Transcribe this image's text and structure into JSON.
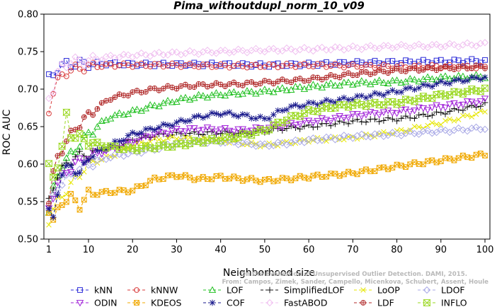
{
  "chart_data": {
    "type": "line",
    "title": "Pima_withoutdupl_norm_10_v09",
    "xlabel": "Neighborhood size",
    "ylabel": "ROC AUC",
    "xlim": [
      1,
      100
    ],
    "ylim": [
      0.5,
      0.8
    ],
    "xticks": [
      1,
      10,
      20,
      30,
      40,
      50,
      60,
      70,
      80,
      90,
      100
    ],
    "yticks": [
      "0.50",
      "0.55",
      "0.60",
      "0.65",
      "0.70",
      "0.75",
      "0.80"
    ],
    "grid": false,
    "legend_position": "bottom",
    "credit": [
      "From: Campos, Zimek, Sander, Campello, Micenkova, Schubert, Assent, Houle",
      "On the Evaluation of Unsupervised Outlier Detection. DAMI, 2015."
    ],
    "series": [
      {
        "name": "kNN",
        "color": "#2b2bd8",
        "marker": "square",
        "points": [
          [
            1,
            0.714
          ],
          [
            2,
            0.72
          ],
          [
            3,
            0.727
          ],
          [
            4,
            0.73
          ],
          [
            5,
            0.733
          ],
          [
            8,
            0.734
          ],
          [
            15,
            0.734
          ],
          [
            20,
            0.733
          ],
          [
            30,
            0.733
          ],
          [
            40,
            0.733
          ],
          [
            50,
            0.732
          ],
          [
            60,
            0.733
          ],
          [
            70,
            0.735
          ],
          [
            80,
            0.736
          ],
          [
            90,
            0.737
          ],
          [
            100,
            0.738
          ]
        ]
      },
      {
        "name": "kNNW",
        "color": "#d83a3a",
        "marker": "circle",
        "points": [
          [
            1,
            0.672
          ],
          [
            2,
            0.697
          ],
          [
            3,
            0.71
          ],
          [
            4,
            0.718
          ],
          [
            5,
            0.723
          ],
          [
            7,
            0.727
          ],
          [
            10,
            0.73
          ],
          [
            15,
            0.732
          ],
          [
            20,
            0.732
          ],
          [
            30,
            0.732
          ],
          [
            40,
            0.731
          ],
          [
            50,
            0.731
          ],
          [
            60,
            0.732
          ],
          [
            70,
            0.731
          ],
          [
            80,
            0.73
          ],
          [
            90,
            0.73
          ],
          [
            100,
            0.729
          ]
        ]
      },
      {
        "name": "LOF",
        "color": "#22c022",
        "marker": "triangle",
        "points": [
          [
            1,
            0.535
          ],
          [
            2,
            0.565
          ],
          [
            3,
            0.585
          ],
          [
            4,
            0.6
          ],
          [
            5,
            0.605
          ],
          [
            7,
            0.62
          ],
          [
            10,
            0.64
          ],
          [
            13,
            0.655
          ],
          [
            15,
            0.663
          ],
          [
            20,
            0.67
          ],
          [
            25,
            0.678
          ],
          [
            30,
            0.685
          ],
          [
            35,
            0.69
          ],
          [
            40,
            0.693
          ],
          [
            50,
            0.697
          ],
          [
            60,
            0.703
          ],
          [
            70,
            0.708
          ],
          [
            80,
            0.71
          ],
          [
            90,
            0.715
          ],
          [
            100,
            0.717
          ]
        ]
      },
      {
        "name": "SimplifiedLOF",
        "color": "#111111",
        "marker": "plus",
        "points": [
          [
            1,
            0.55
          ],
          [
            2,
            0.57
          ],
          [
            3,
            0.585
          ],
          [
            5,
            0.6
          ],
          [
            7,
            0.61
          ],
          [
            10,
            0.613
          ],
          [
            13,
            0.62
          ],
          [
            17,
            0.625
          ],
          [
            20,
            0.632
          ],
          [
            25,
            0.638
          ],
          [
            30,
            0.64
          ],
          [
            35,
            0.641
          ],
          [
            40,
            0.642
          ],
          [
            45,
            0.641
          ],
          [
            50,
            0.644
          ],
          [
            55,
            0.648
          ],
          [
            60,
            0.65
          ],
          [
            70,
            0.657
          ],
          [
            80,
            0.66
          ],
          [
            90,
            0.668
          ],
          [
            100,
            0.68
          ]
        ]
      },
      {
        "name": "LoOP",
        "color": "#e6e600",
        "marker": "x",
        "points": [
          [
            1,
            0.525
          ],
          [
            2,
            0.54
          ],
          [
            3,
            0.55
          ],
          [
            5,
            0.565
          ],
          [
            7,
            0.58
          ],
          [
            10,
            0.6
          ],
          [
            15,
            0.61
          ],
          [
            20,
            0.625
          ],
          [
            25,
            0.632
          ],
          [
            30,
            0.635
          ],
          [
            35,
            0.633
          ],
          [
            40,
            0.632
          ],
          [
            45,
            0.628
          ],
          [
            50,
            0.625
          ],
          [
            55,
            0.628
          ],
          [
            60,
            0.632
          ],
          [
            70,
            0.635
          ],
          [
            80,
            0.643
          ],
          [
            90,
            0.655
          ],
          [
            100,
            0.67
          ]
        ]
      },
      {
        "name": "LDOF",
        "color": "#a9a9e6",
        "marker": "diamond",
        "points": [
          [
            1,
            0.535
          ],
          [
            2,
            0.555
          ],
          [
            3,
            0.57
          ],
          [
            5,
            0.58
          ],
          [
            7,
            0.59
          ],
          [
            10,
            0.6
          ],
          [
            15,
            0.61
          ],
          [
            20,
            0.615
          ],
          [
            25,
            0.62
          ],
          [
            30,
            0.628
          ],
          [
            35,
            0.63
          ],
          [
            40,
            0.63
          ],
          [
            45,
            0.628
          ],
          [
            50,
            0.625
          ],
          [
            55,
            0.628
          ],
          [
            60,
            0.632
          ],
          [
            70,
            0.637
          ],
          [
            80,
            0.64
          ],
          [
            90,
            0.644
          ],
          [
            100,
            0.648
          ]
        ]
      },
      {
        "name": "ODIN",
        "color": "#a020d8",
        "marker": "triangle-down",
        "points": [
          [
            1,
            0.54
          ],
          [
            2,
            0.56
          ],
          [
            3,
            0.575
          ],
          [
            5,
            0.59
          ],
          [
            7,
            0.6
          ],
          [
            10,
            0.61
          ],
          [
            15,
            0.62
          ],
          [
            20,
            0.63
          ],
          [
            25,
            0.64
          ],
          [
            30,
            0.645
          ],
          [
            35,
            0.647
          ],
          [
            40,
            0.646
          ],
          [
            45,
            0.645
          ],
          [
            50,
            0.648
          ],
          [
            55,
            0.652
          ],
          [
            60,
            0.657
          ],
          [
            65,
            0.66
          ],
          [
            70,
            0.665
          ],
          [
            75,
            0.668
          ],
          [
            80,
            0.67
          ],
          [
            90,
            0.677
          ],
          [
            100,
            0.685
          ]
        ]
      },
      {
        "name": "KDEOS",
        "color": "#f0a800",
        "marker": "square-x",
        "points": [
          [
            1,
            0.54
          ],
          [
            2,
            0.522
          ],
          [
            3,
            0.538
          ],
          [
            4,
            0.55
          ],
          [
            6,
            0.555
          ],
          [
            8,
            0.545
          ],
          [
            10,
            0.56
          ],
          [
            15,
            0.563
          ],
          [
            20,
            0.565
          ],
          [
            25,
            0.58
          ],
          [
            30,
            0.585
          ],
          [
            35,
            0.58
          ],
          [
            40,
            0.583
          ],
          [
            45,
            0.58
          ],
          [
            50,
            0.578
          ],
          [
            55,
            0.58
          ],
          [
            60,
            0.583
          ],
          [
            70,
            0.588
          ],
          [
            80,
            0.597
          ],
          [
            90,
            0.605
          ],
          [
            100,
            0.613
          ]
        ]
      },
      {
        "name": "COF",
        "color": "#1a1a8c",
        "marker": "asterisk",
        "points": [
          [
            1,
            0.535
          ],
          [
            2,
            0.528
          ],
          [
            3,
            0.565
          ],
          [
            4,
            0.585
          ],
          [
            6,
            0.6
          ],
          [
            8,
            0.585
          ],
          [
            10,
            0.61
          ],
          [
            15,
            0.625
          ],
          [
            20,
            0.64
          ],
          [
            25,
            0.648
          ],
          [
            30,
            0.655
          ],
          [
            35,
            0.663
          ],
          [
            40,
            0.668
          ],
          [
            45,
            0.665
          ],
          [
            50,
            0.66
          ],
          [
            55,
            0.675
          ],
          [
            60,
            0.68
          ],
          [
            70,
            0.688
          ],
          [
            80,
            0.697
          ],
          [
            90,
            0.708
          ],
          [
            95,
            0.712
          ],
          [
            100,
            0.716
          ]
        ]
      },
      {
        "name": "FastABOD",
        "color": "#f0c0f0",
        "marker": "diamond",
        "points": [
          [
            1,
            0.69
          ],
          [
            2,
            0.7
          ],
          [
            3,
            0.72
          ],
          [
            4,
            0.73
          ],
          [
            6,
            0.737
          ],
          [
            10,
            0.738
          ],
          [
            15,
            0.743
          ],
          [
            20,
            0.745
          ],
          [
            30,
            0.748
          ],
          [
            40,
            0.75
          ],
          [
            50,
            0.752
          ],
          [
            60,
            0.753
          ],
          [
            70,
            0.755
          ],
          [
            80,
            0.757
          ],
          [
            90,
            0.758
          ],
          [
            100,
            0.76
          ]
        ]
      },
      {
        "name": "LDF",
        "color": "#b02828",
        "marker": "circle-plus",
        "points": [
          [
            1,
            0.55
          ],
          [
            2,
            0.585
          ],
          [
            3,
            0.61
          ],
          [
            5,
            0.63
          ],
          [
            7,
            0.648
          ],
          [
            10,
            0.665
          ],
          [
            12,
            0.675
          ],
          [
            15,
            0.688
          ],
          [
            20,
            0.695
          ],
          [
            25,
            0.7
          ],
          [
            30,
            0.703
          ],
          [
            35,
            0.705
          ],
          [
            40,
            0.706
          ],
          [
            45,
            0.707
          ],
          [
            50,
            0.709
          ],
          [
            60,
            0.713
          ],
          [
            70,
            0.72
          ],
          [
            80,
            0.725
          ],
          [
            90,
            0.728
          ],
          [
            100,
            0.73
          ]
        ]
      },
      {
        "name": "INFLO",
        "color": "#9ad820",
        "marker": "hourglass",
        "points": [
          [
            1,
            0.595
          ],
          [
            2,
            0.585
          ],
          [
            3,
            0.6
          ],
          [
            4,
            0.62
          ],
          [
            5,
            0.665
          ],
          [
            6,
            0.64
          ],
          [
            8,
            0.635
          ],
          [
            10,
            0.63
          ],
          [
            13,
            0.625
          ],
          [
            16,
            0.622
          ],
          [
            20,
            0.62
          ],
          [
            25,
            0.623
          ],
          [
            30,
            0.625
          ],
          [
            35,
            0.63
          ],
          [
            40,
            0.633
          ],
          [
            45,
            0.638
          ],
          [
            50,
            0.645
          ],
          [
            55,
            0.66
          ],
          [
            60,
            0.67
          ],
          [
            65,
            0.676
          ],
          [
            70,
            0.679
          ],
          [
            75,
            0.68
          ],
          [
            80,
            0.682
          ],
          [
            90,
            0.692
          ],
          [
            100,
            0.7
          ]
        ]
      }
    ]
  }
}
